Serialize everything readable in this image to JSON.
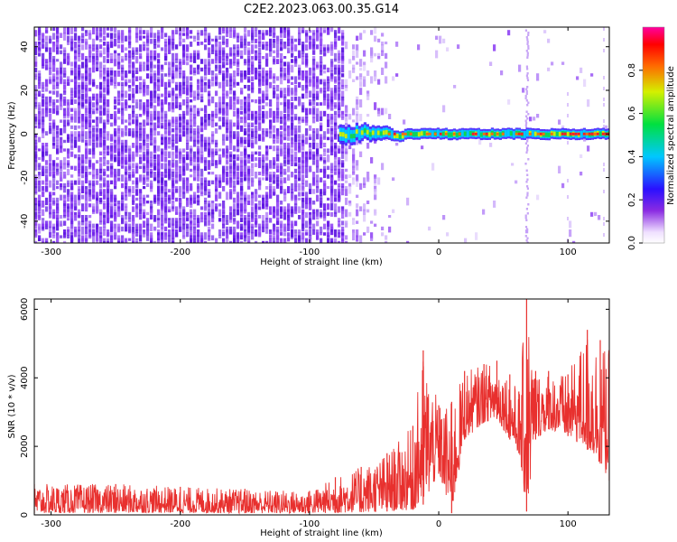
{
  "figure": {
    "title": "C2E2.2023.063.00.35.G14"
  },
  "chart_data": [
    {
      "type": "heatmap",
      "xlabel": "Height of straight line (km)",
      "ylabel": "Frequency (Hz)",
      "xlim": [
        -313,
        132
      ],
      "ylim": [
        -50,
        49
      ],
      "x_ticks": [
        -300,
        -200,
        -100,
        0,
        100
      ],
      "y_ticks": [
        -40,
        -20,
        0,
        20,
        40
      ],
      "colorbar": {
        "label": "Normalized spectral amplitude",
        "range": [
          0,
          1
        ],
        "ticks": [
          "0.0",
          "0.2",
          "0.4",
          "0.6",
          "0.8"
        ],
        "colormap": "rainbow (white-purple-blue-cyan-green-yellow-red-magenta)"
      },
      "features": {
        "noise_region_x": [
          -313,
          -75
        ],
        "carrier_frequency_hz": 0,
        "carrier_start_x": -77,
        "vertical_streak_x": 68
      }
    },
    {
      "type": "line",
      "xlabel": "Height of straight line (km)",
      "ylabel": "SNR (10 * v/v)",
      "xlim": [
        -313,
        132
      ],
      "ylim": [
        0,
        6300
      ],
      "x_ticks": [
        -300,
        -200,
        -100,
        0,
        100
      ],
      "y_ticks": [
        0,
        2000,
        4000,
        6000
      ],
      "series": [
        {
          "color": "#e8302e",
          "envelope": [
            {
              "x": -313,
              "low": 50,
              "high": 900
            },
            {
              "x": -250,
              "low": 60,
              "high": 900
            },
            {
              "x": -200,
              "low": 60,
              "high": 820
            },
            {
              "x": -150,
              "low": 50,
              "high": 760
            },
            {
              "x": -100,
              "low": 50,
              "high": 700
            },
            {
              "x": -80,
              "low": 60,
              "high": 1100
            },
            {
              "x": -60,
              "low": 80,
              "high": 1400
            },
            {
              "x": -40,
              "low": 100,
              "high": 1800
            },
            {
              "x": -20,
              "low": 150,
              "high": 2600
            },
            {
              "x": -12,
              "low": 300,
              "high": 4800
            },
            {
              "x": 0,
              "low": 1200,
              "high": 3200
            },
            {
              "x": 10,
              "low": 50,
              "high": 3300
            },
            {
              "x": 20,
              "low": 2200,
              "high": 4200
            },
            {
              "x": 35,
              "low": 2700,
              "high": 4400
            },
            {
              "x": 45,
              "low": 2800,
              "high": 4500
            },
            {
              "x": 55,
              "low": 2200,
              "high": 4100
            },
            {
              "x": 62,
              "low": 1800,
              "high": 3600
            },
            {
              "x": 68,
              "low": 100,
              "high": 6300
            },
            {
              "x": 75,
              "low": 2200,
              "high": 4200
            },
            {
              "x": 85,
              "low": 2500,
              "high": 4200
            },
            {
              "x": 100,
              "low": 2300,
              "high": 4100
            },
            {
              "x": 115,
              "low": 1900,
              "high": 5400
            },
            {
              "x": 125,
              "low": 1500,
              "high": 5100
            },
            {
              "x": 132,
              "low": 1000,
              "high": 4800
            }
          ]
        }
      ]
    }
  ]
}
